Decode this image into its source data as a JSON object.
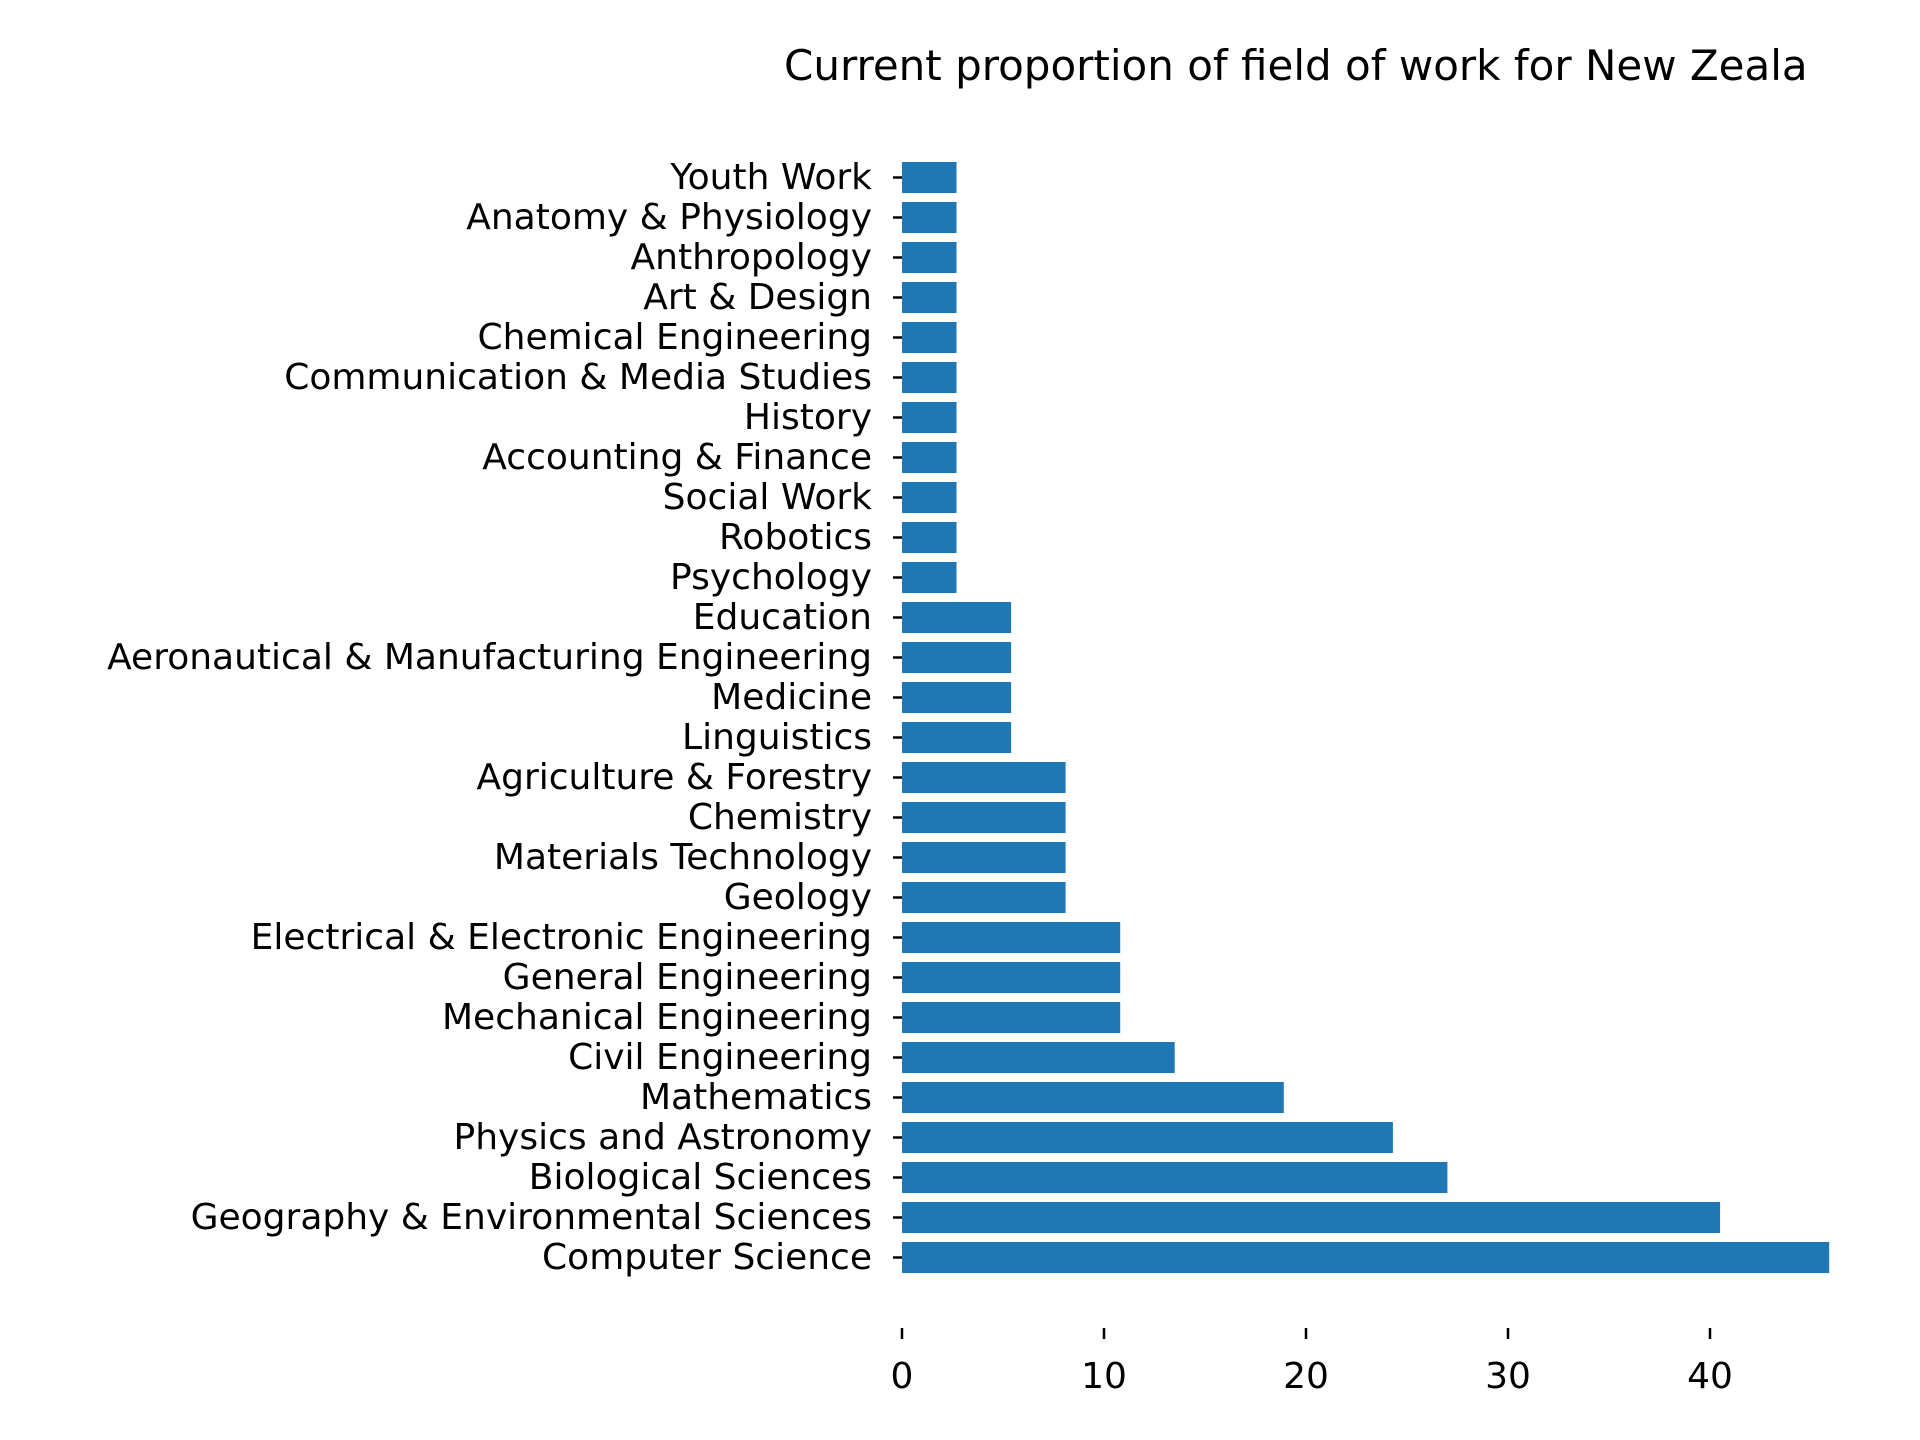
{
  "chart_data": {
    "type": "bar",
    "orientation": "horizontal",
    "title": "Current proportion of field of work for New Zeala",
    "xlabel": "",
    "ylabel": "",
    "categories": [
      "Computer Science",
      "Geography & Environmental Sciences",
      "Biological Sciences",
      "Physics and Astronomy",
      "Mathematics",
      "Civil Engineering",
      "Mechanical Engineering",
      "General Engineering",
      "Electrical & Electronic Engineering",
      "Geology",
      "Materials Technology",
      "Chemistry",
      "Agriculture & Forestry",
      "Linguistics",
      "Medicine",
      "Aeronautical & Manufacturing Engineering",
      "Education",
      "Psychology",
      "Robotics",
      "Social Work",
      "Accounting & Finance",
      "History",
      "Communication & Media Studies",
      "Chemical Engineering",
      "Art & Design",
      "Anthropology",
      "Anatomy & Physiology",
      "Youth Work"
    ],
    "values": [
      45.9,
      40.5,
      27.0,
      24.3,
      18.9,
      13.5,
      10.8,
      10.8,
      10.8,
      8.1,
      8.1,
      8.1,
      8.1,
      5.4,
      5.4,
      5.4,
      5.4,
      2.7,
      2.7,
      2.7,
      2.7,
      2.7,
      2.7,
      2.7,
      2.7,
      2.7,
      2.7,
      2.7
    ],
    "xticks": [
      "0",
      "10",
      "20",
      "30",
      "40"
    ],
    "xlim": [
      0,
      46
    ],
    "bar_color": "#1f77b4",
    "grid": false,
    "legend": false
  }
}
